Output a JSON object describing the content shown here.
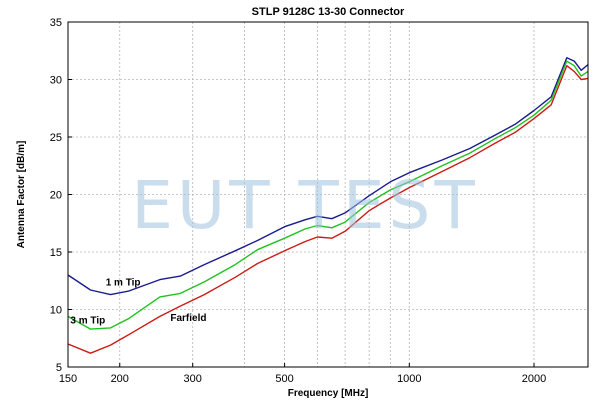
{
  "watermark": "EUT TEST",
  "chart_data": {
    "type": "line",
    "title": "STLP 9128C 13-30 Connector",
    "xlabel": "Frequency [MHz]",
    "ylabel": "Antenna Factor [dB/m]",
    "xscale": "log",
    "xlim": [
      150,
      2700
    ],
    "ylim": [
      5,
      35
    ],
    "grid": true,
    "x_ticks": [
      150,
      200,
      300,
      500,
      1000,
      2000
    ],
    "y_ticks": [
      5,
      10,
      15,
      20,
      25,
      30,
      35
    ],
    "annotations": [
      {
        "text": "1 m Tip",
        "series": "1 m Tip"
      },
      {
        "text": "3 m Tip",
        "series": "3 m Tip"
      },
      {
        "text": "Farfield",
        "series": "Farfield"
      }
    ],
    "x": [
      150,
      170,
      190,
      210,
      250,
      280,
      320,
      380,
      430,
      500,
      560,
      600,
      650,
      700,
      800,
      900,
      1000,
      1200,
      1400,
      1600,
      1800,
      2000,
      2200,
      2400,
      2500,
      2600,
      2700
    ],
    "series": [
      {
        "name": "1 m Tip",
        "color": "#1b1b8f",
        "values": [
          13.0,
          11.7,
          11.3,
          11.6,
          12.6,
          12.9,
          13.9,
          15.1,
          16.0,
          17.2,
          17.8,
          18.1,
          17.9,
          18.4,
          19.9,
          21.1,
          21.9,
          23.0,
          24.0,
          25.1,
          26.1,
          27.3,
          28.5,
          31.9,
          31.6,
          30.8,
          31.3
        ]
      },
      {
        "name": "3 m Tip",
        "color": "#21c21f",
        "values": [
          9.4,
          8.3,
          8.4,
          9.2,
          11.1,
          11.4,
          12.4,
          13.9,
          15.2,
          16.2,
          17.0,
          17.3,
          17.1,
          17.6,
          19.3,
          20.4,
          21.1,
          22.5,
          23.6,
          24.8,
          25.8,
          26.9,
          28.2,
          31.6,
          31.2,
          30.3,
          30.7
        ]
      },
      {
        "name": "Farfield",
        "color": "#cc1b14",
        "values": [
          7.0,
          6.2,
          6.9,
          7.8,
          9.4,
          10.3,
          11.3,
          12.8,
          14.0,
          15.1,
          15.9,
          16.3,
          16.2,
          16.8,
          18.6,
          19.7,
          20.6,
          22.0,
          23.2,
          24.4,
          25.4,
          26.6,
          27.8,
          31.2,
          30.7,
          30.0,
          30.1
        ]
      }
    ]
  }
}
